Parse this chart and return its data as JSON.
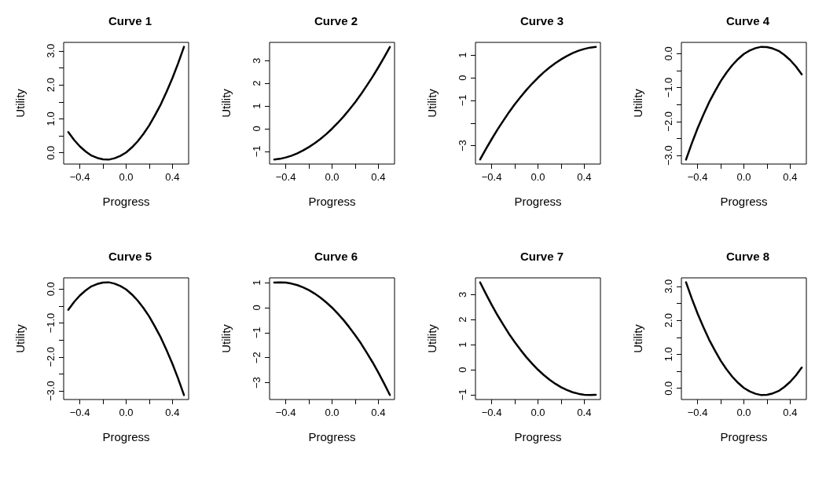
{
  "chart_data": [
    {
      "type": "line",
      "title": "Curve 1",
      "xlabel": "Progress",
      "ylabel": "Utility",
      "x": [
        -0.5,
        -0.45,
        -0.4,
        -0.35,
        -0.3,
        -0.25,
        -0.2,
        -0.15,
        -0.1,
        -0.05,
        0,
        0.05,
        0.1,
        0.15,
        0.2,
        0.25,
        0.3,
        0.35,
        0.4,
        0.45,
        0.5
      ],
      "values": [
        0.61,
        0.38,
        0.19,
        0.04,
        -0.08,
        -0.15,
        -0.19,
        -0.2,
        -0.16,
        -0.09,
        0.01,
        0.16,
        0.34,
        0.56,
        0.81,
        1.11,
        1.43,
        1.8,
        2.2,
        2.64,
        3.12
      ],
      "color": "#000000",
      "xlim": [
        -0.54,
        0.54
      ],
      "ylim": [
        -0.33,
        3.25
      ],
      "xticks": [
        {
          "value": -0.4,
          "label": "−0.4"
        },
        {
          "value": -0.2,
          "label": null
        },
        {
          "value": 0,
          "label": "0.0"
        },
        {
          "value": 0.2,
          "label": null
        },
        {
          "value": 0.4,
          "label": "0.4"
        }
      ],
      "yticks": [
        {
          "value": 0,
          "label": "0.0"
        },
        {
          "value": 0.5,
          "label": null
        },
        {
          "value": 1,
          "label": "1.0"
        },
        {
          "value": 1.5,
          "label": null
        },
        {
          "value": 2,
          "label": "2.0"
        },
        {
          "value": 2.5,
          "label": null
        },
        {
          "value": 3,
          "label": "3.0"
        }
      ]
    },
    {
      "type": "line",
      "title": "Curve 2",
      "xlabel": "Progress",
      "ylabel": "Utility",
      "x": [
        -0.5,
        -0.45,
        -0.4,
        -0.35,
        -0.3,
        -0.25,
        -0.2,
        -0.15,
        -0.1,
        -0.05,
        0,
        0.05,
        0.1,
        0.15,
        0.2,
        0.25,
        0.3,
        0.35,
        0.4,
        0.45,
        0.5
      ],
      "values": [
        -1.36,
        -1.33,
        -1.27,
        -1.19,
        -1.09,
        -0.96,
        -0.81,
        -0.64,
        -0.45,
        -0.24,
        0,
        0.26,
        0.54,
        0.85,
        1.17,
        1.52,
        1.9,
        2.29,
        2.71,
        3.15,
        3.61
      ],
      "color": "#000000",
      "xlim": [
        -0.54,
        0.54
      ],
      "ylim": [
        -1.56,
        3.81
      ],
      "xticks": [
        {
          "value": -0.4,
          "label": "−0.4"
        },
        {
          "value": -0.2,
          "label": null
        },
        {
          "value": 0,
          "label": "0.0"
        },
        {
          "value": 0.2,
          "label": null
        },
        {
          "value": 0.4,
          "label": "0.4"
        }
      ],
      "yticks": [
        {
          "value": -1,
          "label": "−1"
        },
        0,
        1,
        2,
        3
      ]
    },
    {
      "type": "line",
      "title": "Curve 3",
      "xlabel": "Progress",
      "ylabel": "Utility",
      "x": [
        -0.5,
        -0.45,
        -0.4,
        -0.35,
        -0.3,
        -0.25,
        -0.2,
        -0.15,
        -0.1,
        -0.05,
        0,
        0.05,
        0.1,
        0.15,
        0.2,
        0.25,
        0.3,
        0.35,
        0.4,
        0.45,
        0.5
      ],
      "values": [
        -3.61,
        -3.15,
        -2.71,
        -2.29,
        -1.9,
        -1.52,
        -1.17,
        -0.85,
        -0.54,
        -0.26,
        0,
        0.24,
        0.45,
        0.64,
        0.81,
        0.96,
        1.09,
        1.19,
        1.27,
        1.33,
        1.36
      ],
      "color": "#000000",
      "xlim": [
        -0.54,
        0.54
      ],
      "ylim": [
        -3.81,
        1.56
      ],
      "xticks": [
        {
          "value": -0.4,
          "label": "−0.4"
        },
        {
          "value": -0.2,
          "label": null
        },
        {
          "value": 0,
          "label": "0.0"
        },
        {
          "value": 0.2,
          "label": null
        },
        {
          "value": 0.4,
          "label": "0.4"
        }
      ],
      "yticks": [
        {
          "value": -3,
          "label": "−3"
        },
        {
          "value": -2,
          "label": null
        },
        {
          "value": -1,
          "label": "−1"
        },
        0,
        1
      ]
    },
    {
      "type": "line",
      "title": "Curve 4",
      "xlabel": "Progress",
      "ylabel": "Utility",
      "x": [
        -0.5,
        -0.45,
        -0.4,
        -0.35,
        -0.3,
        -0.25,
        -0.2,
        -0.15,
        -0.1,
        -0.05,
        0,
        0.05,
        0.1,
        0.15,
        0.2,
        0.25,
        0.3,
        0.35,
        0.4,
        0.45,
        0.5
      ],
      "values": [
        -3.12,
        -2.64,
        -2.2,
        -1.8,
        -1.43,
        -1.11,
        -0.81,
        -0.56,
        -0.34,
        -0.16,
        -0.01,
        0.09,
        0.16,
        0.2,
        0.19,
        0.15,
        0.08,
        -0.04,
        -0.19,
        -0.38,
        -0.61
      ],
      "color": "#000000",
      "xlim": [
        -0.54,
        0.54
      ],
      "ylim": [
        -3.25,
        0.33
      ],
      "xticks": [
        {
          "value": -0.4,
          "label": "−0.4"
        },
        {
          "value": -0.2,
          "label": null
        },
        {
          "value": 0,
          "label": "0.0"
        },
        {
          "value": 0.2,
          "label": null
        },
        {
          "value": 0.4,
          "label": "0.4"
        }
      ],
      "yticks": [
        {
          "value": -3,
          "label": "−3.0"
        },
        {
          "value": -2.5,
          "label": null
        },
        {
          "value": -2,
          "label": "−2.0"
        },
        {
          "value": -1.5,
          "label": null
        },
        {
          "value": -1,
          "label": "−1.0"
        },
        {
          "value": -0.5,
          "label": null
        },
        {
          "value": 0,
          "label": "0.0"
        }
      ]
    },
    {
      "type": "line",
      "title": "Curve 5",
      "xlabel": "Progress",
      "ylabel": "Utility",
      "x": [
        -0.5,
        -0.45,
        -0.4,
        -0.35,
        -0.3,
        -0.25,
        -0.2,
        -0.15,
        -0.1,
        -0.05,
        0,
        0.05,
        0.1,
        0.15,
        0.2,
        0.25,
        0.3,
        0.35,
        0.4,
        0.45,
        0.5
      ],
      "values": [
        -0.61,
        -0.38,
        -0.19,
        -0.04,
        0.08,
        0.15,
        0.19,
        0.2,
        0.16,
        0.09,
        -0.01,
        -0.16,
        -0.34,
        -0.56,
        -0.81,
        -1.11,
        -1.43,
        -1.8,
        -2.2,
        -2.64,
        -3.12
      ],
      "color": "#000000",
      "xlim": [
        -0.54,
        0.54
      ],
      "ylim": [
        -3.25,
        0.33
      ],
      "xticks": [
        {
          "value": -0.4,
          "label": "−0.4"
        },
        {
          "value": -0.2,
          "label": null
        },
        {
          "value": 0,
          "label": "0.0"
        },
        {
          "value": 0.2,
          "label": null
        },
        {
          "value": 0.4,
          "label": "0.4"
        }
      ],
      "yticks": [
        {
          "value": -3,
          "label": "−3.0"
        },
        {
          "value": -2.5,
          "label": null
        },
        {
          "value": -2,
          "label": "−2.0"
        },
        {
          "value": -1.5,
          "label": null
        },
        {
          "value": -1,
          "label": "−1.0"
        },
        {
          "value": -0.5,
          "label": null
        },
        {
          "value": 0,
          "label": "0.0"
        }
      ]
    },
    {
      "type": "line",
      "title": "Curve 6",
      "xlabel": "Progress",
      "ylabel": "Utility",
      "x": [
        -0.5,
        -0.45,
        -0.4,
        -0.35,
        -0.3,
        -0.25,
        -0.2,
        -0.15,
        -0.1,
        -0.05,
        0,
        0.05,
        0.1,
        0.15,
        0.2,
        0.25,
        0.3,
        0.35,
        0.4,
        0.45,
        0.5
      ],
      "values": [
        1,
        1.01,
        1,
        0.96,
        0.9,
        0.81,
        0.7,
        0.56,
        0.4,
        0.21,
        0,
        -0.24,
        -0.5,
        -0.79,
        -1.1,
        -1.43,
        -1.8,
        -2.18,
        -2.59,
        -3.03,
        -3.49
      ],
      "color": "#000000",
      "xlim": [
        -0.54,
        0.54
      ],
      "ylim": [
        -3.67,
        1.19
      ],
      "xticks": [
        {
          "value": -0.4,
          "label": "−0.4"
        },
        {
          "value": -0.2,
          "label": null
        },
        {
          "value": 0,
          "label": "0.0"
        },
        {
          "value": 0.2,
          "label": null
        },
        {
          "value": 0.4,
          "label": "0.4"
        }
      ],
      "yticks": [
        {
          "value": -3,
          "label": "−3"
        },
        {
          "value": -2,
          "label": "−2"
        },
        {
          "value": -1,
          "label": "−1"
        },
        0,
        1
      ]
    },
    {
      "type": "line",
      "title": "Curve 7",
      "xlabel": "Progress",
      "ylabel": "Utility",
      "x": [
        -0.5,
        -0.45,
        -0.4,
        -0.35,
        -0.3,
        -0.25,
        -0.2,
        -0.15,
        -0.1,
        -0.05,
        0,
        0.05,
        0.1,
        0.15,
        0.2,
        0.25,
        0.3,
        0.35,
        0.4,
        0.45,
        0.5
      ],
      "values": [
        3.49,
        3.03,
        2.59,
        2.18,
        1.8,
        1.43,
        1.1,
        0.79,
        0.5,
        0.24,
        0,
        -0.21,
        -0.4,
        -0.56,
        -0.7,
        -0.81,
        -0.9,
        -0.96,
        -1,
        -1.01,
        -1
      ],
      "color": "#000000",
      "xlim": [
        -0.54,
        0.54
      ],
      "ylim": [
        -1.19,
        3.67
      ],
      "xticks": [
        {
          "value": -0.4,
          "label": "−0.4"
        },
        {
          "value": -0.2,
          "label": null
        },
        {
          "value": 0,
          "label": "0.0"
        },
        {
          "value": 0.2,
          "label": null
        },
        {
          "value": 0.4,
          "label": "0.4"
        }
      ],
      "yticks": [
        {
          "value": -1,
          "label": "−1"
        },
        0,
        1,
        2,
        3
      ]
    },
    {
      "type": "line",
      "title": "Curve 8",
      "xlabel": "Progress",
      "ylabel": "Utility",
      "x": [
        -0.5,
        -0.45,
        -0.4,
        -0.35,
        -0.3,
        -0.25,
        -0.2,
        -0.15,
        -0.1,
        -0.05,
        0,
        0.05,
        0.1,
        0.15,
        0.2,
        0.25,
        0.3,
        0.35,
        0.4,
        0.45,
        0.5
      ],
      "values": [
        3.12,
        2.64,
        2.2,
        1.8,
        1.43,
        1.11,
        0.81,
        0.56,
        0.34,
        0.16,
        0.01,
        -0.09,
        -0.16,
        -0.2,
        -0.19,
        -0.15,
        -0.08,
        0.04,
        0.19,
        0.38,
        0.61
      ],
      "color": "#000000",
      "xlim": [
        -0.54,
        0.54
      ],
      "ylim": [
        -0.33,
        3.25
      ],
      "xticks": [
        {
          "value": -0.4,
          "label": "−0.4"
        },
        {
          "value": -0.2,
          "label": null
        },
        {
          "value": 0,
          "label": "0.0"
        },
        {
          "value": 0.2,
          "label": null
        },
        {
          "value": 0.4,
          "label": "0.4"
        }
      ],
      "yticks": [
        {
          "value": 0,
          "label": "0.0"
        },
        {
          "value": 0.5,
          "label": null
        },
        {
          "value": 1,
          "label": "1.0"
        },
        {
          "value": 1.5,
          "label": null
        },
        {
          "value": 2,
          "label": "2.0"
        },
        {
          "value": 2.5,
          "label": null
        },
        {
          "value": 3,
          "label": "3.0"
        }
      ]
    }
  ]
}
